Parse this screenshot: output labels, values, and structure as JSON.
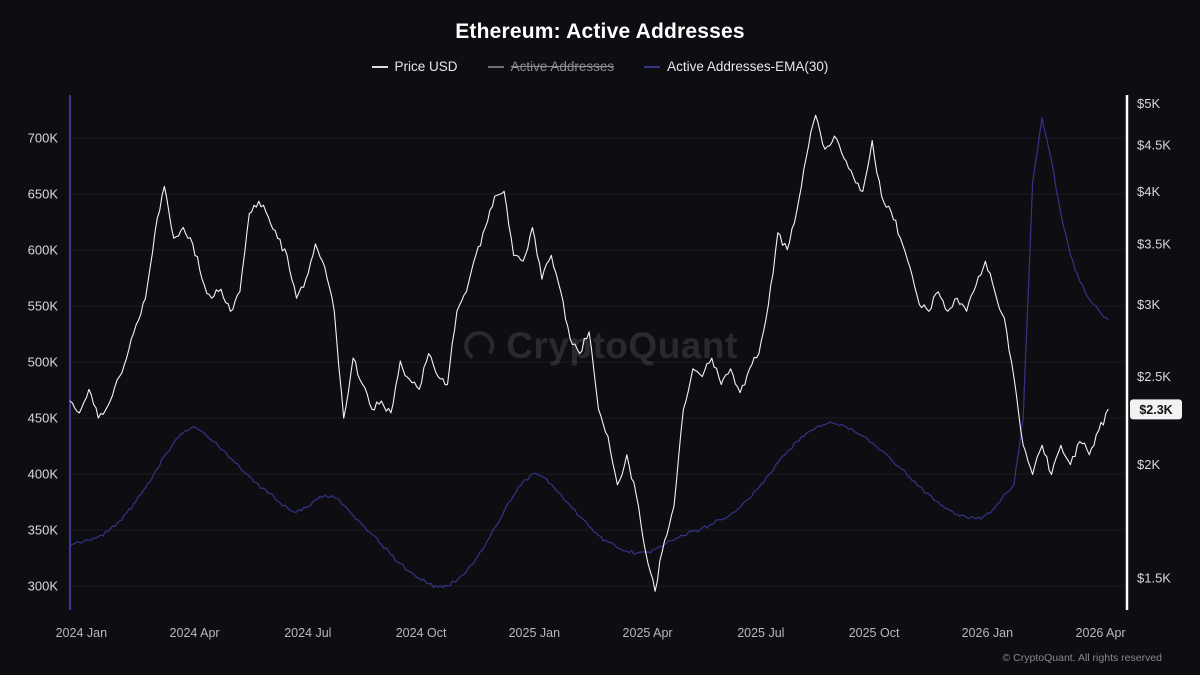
{
  "page": {
    "title": "Ethereum: Active Addresses",
    "watermark": "CryptoQuant",
    "footer": "© CryptoQuant. All rights reserved",
    "background": "#0d0d12"
  },
  "legend": {
    "items": [
      {
        "label": "Price USD",
        "color": "#dcdcde",
        "disabled": false
      },
      {
        "label": "Active Addresses",
        "color": "#9a9a9e",
        "disabled": true
      },
      {
        "label": "Active Addresses-EMA(30)",
        "color": "#34348a",
        "disabled": false
      }
    ]
  },
  "chart_data": {
    "type": "line",
    "title": "Ethereum: Active Addresses",
    "legend": [
      "Price USD",
      "Active Addresses",
      "Active Addresses-EMA(30)"
    ],
    "legend_position": "top",
    "grid": "horizontal",
    "x_axis": {
      "domain": [
        0,
        28
      ],
      "unit": "months since 2024-01",
      "ticks": [
        {
          "m": 0.3,
          "label": "2024 Jan"
        },
        {
          "m": 3.3,
          "label": "2024 Apr"
        },
        {
          "m": 6.3,
          "label": "2024 Jul"
        },
        {
          "m": 9.3,
          "label": "2024 Oct"
        },
        {
          "m": 12.3,
          "label": "2025 Jan"
        },
        {
          "m": 15.3,
          "label": "2025 Apr"
        },
        {
          "m": 18.3,
          "label": "2025 Jul"
        },
        {
          "m": 21.3,
          "label": "2025 Oct"
        },
        {
          "m": 24.3,
          "label": "2026 Jan"
        },
        {
          "m": 27.3,
          "label": "2026 Apr"
        }
      ]
    },
    "y_axis_left": {
      "scale": "linear",
      "unit": "active addresses",
      "domain": [
        278.6,
        738.4
      ],
      "axis_line_color": "#4a4ac2",
      "ticks": [
        {
          "v": 700,
          "label": "700K"
        },
        {
          "v": 650,
          "label": "650K"
        },
        {
          "v": 600,
          "label": "600K"
        },
        {
          "v": 550,
          "label": "550K"
        },
        {
          "v": 500,
          "label": "500K"
        },
        {
          "v": 450,
          "label": "450K"
        },
        {
          "v": 400,
          "label": "400K"
        },
        {
          "v": 350,
          "label": "350K"
        },
        {
          "v": 300,
          "label": "300K"
        }
      ]
    },
    "y_axis_right": {
      "scale": "log",
      "unit": "USD (thousands)",
      "domain": [
        1.383,
        5.106
      ],
      "axis_line_color": "#ffffff",
      "ticks": [
        {
          "v": 5,
          "label": "$5K"
        },
        {
          "v": 4.5,
          "label": "$4.5K"
        },
        {
          "v": 4,
          "label": "$4K"
        },
        {
          "v": 3.5,
          "label": "$3.5K"
        },
        {
          "v": 3,
          "label": "$3K"
        },
        {
          "v": 2.5,
          "label": "$2.5K"
        },
        {
          "v": 2,
          "label": "$2K"
        },
        {
          "v": 1.5,
          "label": "$1.5K"
        }
      ]
    },
    "last_value_badge": {
      "label": "$2.3K",
      "value": 2.3,
      "axis": "right",
      "series": "Price USD"
    },
    "series": [
      {
        "name": "Price USD",
        "axis": "right",
        "color": "#f4f4f5",
        "width": 1.1,
        "hidden": false,
        "x_start": 0,
        "x_step": 0.25,
        "values": [
          2.35,
          2.28,
          2.42,
          2.25,
          2.32,
          2.48,
          2.62,
          2.85,
          3.05,
          3.6,
          4.05,
          3.55,
          3.65,
          3.5,
          3.2,
          3.05,
          3.12,
          2.95,
          3.1,
          3.78,
          3.9,
          3.75,
          3.55,
          3.4,
          3.05,
          3.2,
          3.5,
          3.3,
          2.95,
          2.25,
          2.62,
          2.45,
          2.3,
          2.35,
          2.28,
          2.6,
          2.48,
          2.42,
          2.65,
          2.5,
          2.45,
          2.95,
          3.1,
          3.4,
          3.65,
          3.95,
          4.0,
          3.4,
          3.35,
          3.65,
          3.2,
          3.4,
          3.1,
          2.75,
          2.65,
          2.8,
          2.3,
          2.15,
          1.9,
          2.05,
          1.85,
          1.6,
          1.45,
          1.65,
          1.8,
          2.3,
          2.55,
          2.5,
          2.62,
          2.45,
          2.55,
          2.4,
          2.55,
          2.65,
          3.0,
          3.6,
          3.45,
          3.8,
          4.35,
          4.85,
          4.45,
          4.6,
          4.35,
          4.15,
          4.0,
          4.55,
          3.95,
          3.8,
          3.55,
          3.3,
          3.0,
          2.95,
          3.1,
          2.95,
          3.05,
          2.95,
          3.15,
          3.35,
          3.1,
          2.9,
          2.5,
          2.1,
          1.95,
          2.1,
          1.95,
          2.1,
          2.0,
          2.12,
          2.05,
          2.18,
          2.3
        ]
      },
      {
        "name": "Active Addresses",
        "axis": "left",
        "color": "#9a9a9e",
        "width": 1,
        "hidden": true,
        "x_start": 0,
        "x_step": 0.25,
        "values": []
      },
      {
        "name": "Active Addresses-EMA(30)",
        "axis": "left",
        "color": "#34348a",
        "width": 1.2,
        "hidden": false,
        "x_start": 0,
        "x_step": 0.25,
        "values": [
          336,
          339,
          341,
          344,
          349,
          356,
          365,
          376,
          388,
          402,
          416,
          428,
          437,
          442,
          438,
          430,
          422,
          414,
          406,
          398,
          390,
          383,
          376,
          370,
          366,
          370,
          377,
          381,
          379,
          372,
          363,
          354,
          346,
          337,
          328,
          320,
          313,
          307,
          302,
          299,
          300,
          305,
          313,
          324,
          337,
          352,
          367,
          381,
          393,
          400,
          398,
          391,
          382,
          372,
          362,
          353,
          345,
          339,
          334,
          331,
          329,
          330,
          333,
          337,
          341,
          345,
          349,
          352,
          355,
          359,
          364,
          370,
          378,
          388,
          399,
          410,
          420,
          429,
          436,
          441,
          444,
          445,
          443,
          439,
          434,
          428,
          421,
          413,
          405,
          397,
          389,
          382,
          375,
          369,
          364,
          361,
          360,
          363,
          370,
          382,
          390,
          450,
          660,
          718,
          680,
          632,
          596,
          572,
          556,
          546,
          538
        ]
      }
    ]
  }
}
